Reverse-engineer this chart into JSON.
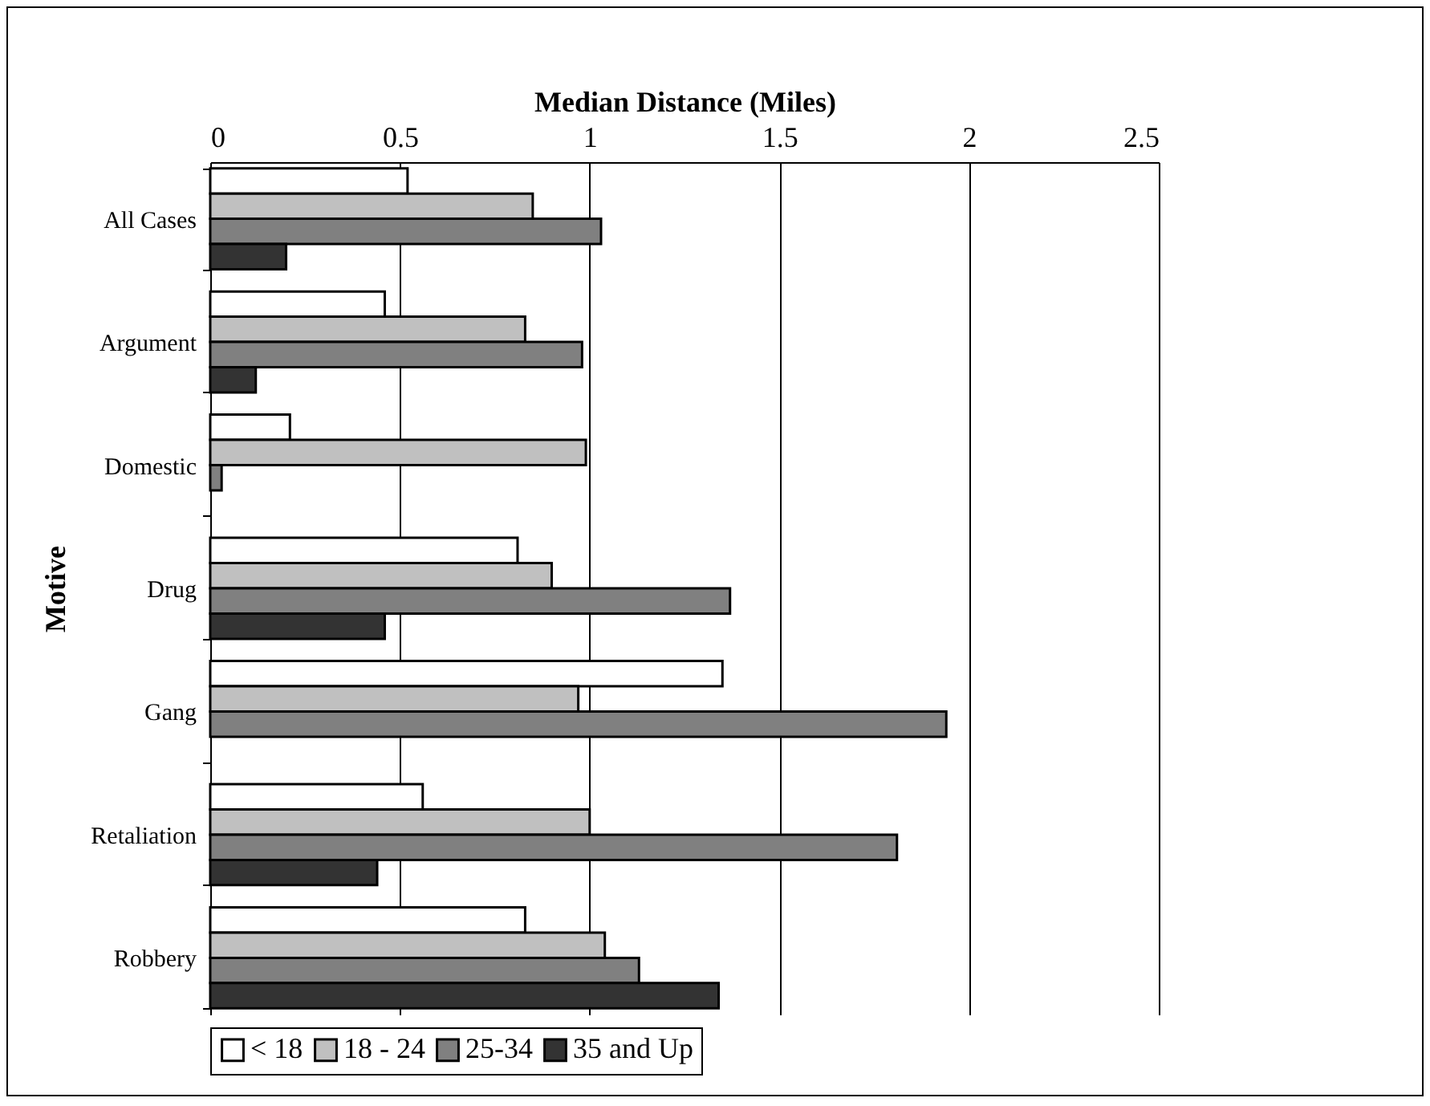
{
  "chart_data": {
    "type": "bar",
    "orientation": "horizontal",
    "xlabel": "Median Distance (Miles)",
    "ylabel": "Motive",
    "categories": [
      "All Cases",
      "Argument",
      "Domestic",
      "Drug",
      "Gang",
      "Retaliation",
      "Robbery"
    ],
    "series": [
      {
        "name": "< 18",
        "color": "#ffffff",
        "values": [
          0.52,
          0.46,
          0.21,
          0.81,
          1.35,
          0.56,
          0.83
        ]
      },
      {
        "name": "18 - 24",
        "color": "#c0c0c0",
        "values": [
          0.85,
          0.83,
          0.99,
          0.9,
          0.97,
          1.0,
          1.04
        ]
      },
      {
        "name": "25-34",
        "color": "#808080",
        "values": [
          1.03,
          0.98,
          0.03,
          1.37,
          1.94,
          1.81,
          1.13
        ]
      },
      {
        "name": "35 and Up",
        "color": "#333333",
        "values": [
          0.2,
          0.12,
          null,
          0.46,
          null,
          0.44,
          1.34
        ]
      }
    ],
    "xlim": [
      0,
      2.5
    ],
    "xticks": [
      0,
      0.5,
      1,
      1.5,
      2,
      2.5
    ],
    "grid": "x",
    "legend": "bottom"
  }
}
